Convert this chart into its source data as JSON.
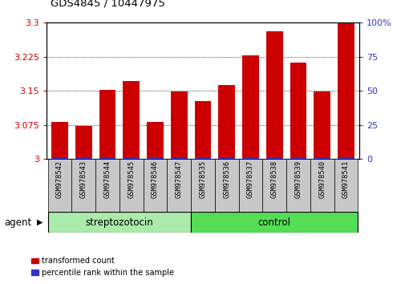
{
  "title": "GDS4845 / 10447975",
  "categories": [
    "GSM978542",
    "GSM978543",
    "GSM978544",
    "GSM978545",
    "GSM978546",
    "GSM978547",
    "GSM978535",
    "GSM978536",
    "GSM978537",
    "GSM978538",
    "GSM978539",
    "GSM978540",
    "GSM978541"
  ],
  "red_values": [
    3.082,
    3.072,
    3.152,
    3.172,
    3.082,
    3.148,
    3.128,
    3.162,
    3.228,
    3.282,
    3.212,
    3.148,
    3.298
  ],
  "blue_values": [
    1.5,
    1.5,
    1.5,
    1.5,
    1.5,
    1.5,
    1.5,
    1.5,
    1.5,
    1.5,
    1.5,
    1.5,
    1.5
  ],
  "ylim_left": [
    3.0,
    3.3
  ],
  "ylim_right": [
    0,
    100
  ],
  "yticks_left": [
    3.0,
    3.075,
    3.15,
    3.225,
    3.3
  ],
  "yticks_right": [
    0,
    25,
    50,
    75,
    100
  ],
  "ytick_labels_left": [
    "3",
    "3.075",
    "3.15",
    "3.225",
    "3.3"
  ],
  "ytick_labels_right": [
    "0",
    "25",
    "50",
    "75",
    "100%"
  ],
  "bar_color_red": "#cc0000",
  "bar_color_blue": "#3333cc",
  "bg_plot": "#ffffff",
  "bg_xtick": "#c8c8c8",
  "group1_label": "streptozotocin",
  "group2_label": "control",
  "group1_color": "#aaeaaa",
  "group2_color": "#55dd55",
  "group1_count": 6,
  "group2_count": 7,
  "agent_label": "agent",
  "legend_red": "transformed count",
  "legend_blue": "percentile rank within the sample",
  "bar_width": 0.7
}
